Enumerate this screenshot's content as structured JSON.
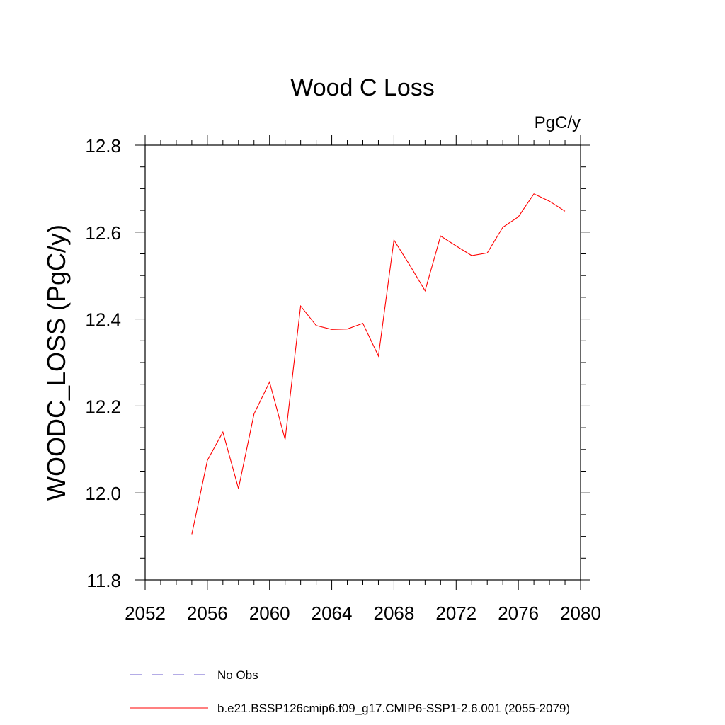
{
  "chart_data": {
    "type": "line",
    "title": "Wood C Loss",
    "units_label": "PgC/y",
    "ylabel": "WOODC_LOSS  (PgC/y)",
    "xlabel": "",
    "xlim": [
      2052,
      2080
    ],
    "ylim": [
      11.8,
      12.8
    ],
    "x_ticks": [
      2052,
      2056,
      2060,
      2064,
      2068,
      2072,
      2076,
      2080
    ],
    "x_tick_labels": [
      "2052",
      "2056",
      "2060",
      "2064",
      "2068",
      "2072",
      "2076",
      "2080"
    ],
    "y_ticks": [
      11.8,
      12.0,
      12.2,
      12.4,
      12.6,
      12.8
    ],
    "y_tick_labels": [
      "11.8",
      "12.0",
      "12.2",
      "12.4",
      "12.6",
      "12.8"
    ],
    "grid": false,
    "legend_position": "bottom",
    "series": [
      {
        "name": "No Obs",
        "color": "#6a5acd",
        "dash": "dashed",
        "x": [],
        "y": []
      },
      {
        "name": "b.e21.BSSP126cmip6.f09_g17.CMIP6-SSP1-2.6.001 (2055-2079)",
        "color": "#ff0000",
        "dash": "solid",
        "x": [
          2055,
          2056,
          2057,
          2058,
          2059,
          2060,
          2061,
          2062,
          2063,
          2064,
          2065,
          2066,
          2067,
          2068,
          2069,
          2070,
          2071,
          2072,
          2073,
          2074,
          2075,
          2076,
          2077,
          2078,
          2079
        ],
        "y": [
          11.905,
          12.075,
          12.14,
          12.01,
          12.182,
          12.255,
          12.123,
          12.43,
          12.385,
          12.376,
          12.377,
          12.39,
          12.315,
          12.582,
          12.525,
          12.465,
          12.591,
          12.568,
          12.546,
          12.552,
          12.611,
          12.635,
          12.688,
          12.671,
          12.648
        ]
      }
    ]
  }
}
